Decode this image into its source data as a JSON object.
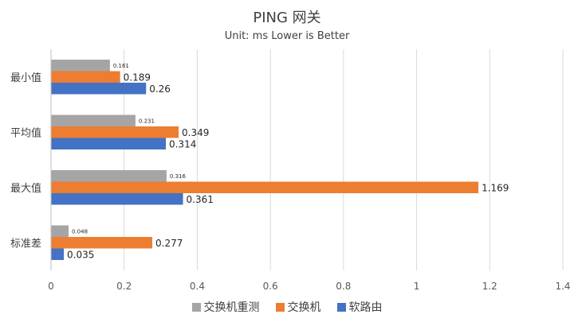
{
  "chart_data": {
    "type": "bar",
    "orientation": "horizontal",
    "title": "PING 网关",
    "subtitle": "Unit: ms Lower is Better",
    "categories": [
      "最小值",
      "平均值",
      "最大值",
      "标准差"
    ],
    "series": [
      {
        "name": "交换机重测",
        "color": "#a5a5a5",
        "values": [
          0.161,
          0.231,
          0.316,
          0.048
        ]
      },
      {
        "name": "交换机",
        "color": "#ed7d31",
        "values": [
          0.189,
          0.349,
          1.169,
          0.277
        ]
      },
      {
        "name": "软路由",
        "color": "#4472c4",
        "values": [
          0.26,
          0.314,
          0.361,
          0.035
        ]
      }
    ],
    "xlim": [
      0,
      1.4
    ],
    "xticks": [
      "0",
      "0.2",
      "0.4",
      "0.6",
      "0.8",
      "1",
      "1.2",
      "1.4"
    ],
    "grid": true,
    "legend_position": "bottom"
  }
}
